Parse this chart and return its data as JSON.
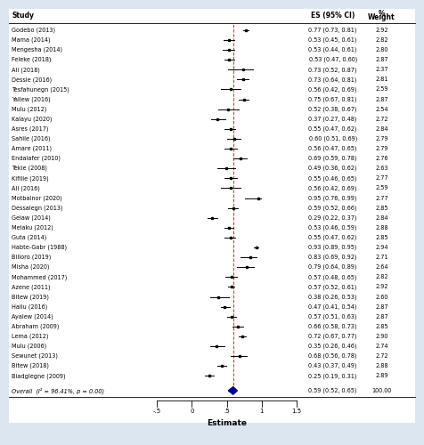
{
  "studies": [
    {
      "name": "Godebo (2013)",
      "es": 0.77,
      "ci_lo": 0.73,
      "ci_hi": 0.81,
      "weight": 2.92
    },
    {
      "name": "Mama (2014)",
      "es": 0.53,
      "ci_lo": 0.45,
      "ci_hi": 0.61,
      "weight": 2.82
    },
    {
      "name": "Mengesha (2014)",
      "es": 0.53,
      "ci_lo": 0.44,
      "ci_hi": 0.61,
      "weight": 2.8
    },
    {
      "name": "Feleke (2018)",
      "es": 0.53,
      "ci_lo": 0.47,
      "ci_hi": 0.6,
      "weight": 2.87
    },
    {
      "name": "Ali (2018)",
      "es": 0.73,
      "ci_lo": 0.52,
      "ci_hi": 0.87,
      "weight": 2.37
    },
    {
      "name": "Dessie (2016)",
      "es": 0.73,
      "ci_lo": 0.64,
      "ci_hi": 0.81,
      "weight": 2.81
    },
    {
      "name": "Tesfahunegn (2015)",
      "es": 0.56,
      "ci_lo": 0.42,
      "ci_hi": 0.69,
      "weight": 2.59
    },
    {
      "name": "Yallew (2016)",
      "es": 0.75,
      "ci_lo": 0.67,
      "ci_hi": 0.81,
      "weight": 2.87
    },
    {
      "name": "Mulu (2012)",
      "es": 0.52,
      "ci_lo": 0.38,
      "ci_hi": 0.67,
      "weight": 2.54
    },
    {
      "name": "Kalayu (2020)",
      "es": 0.37,
      "ci_lo": 0.27,
      "ci_hi": 0.48,
      "weight": 2.72
    },
    {
      "name": "Asres (2017)",
      "es": 0.55,
      "ci_lo": 0.47,
      "ci_hi": 0.62,
      "weight": 2.84
    },
    {
      "name": "Sahile (2016)",
      "es": 0.6,
      "ci_lo": 0.51,
      "ci_hi": 0.69,
      "weight": 2.79
    },
    {
      "name": "Amare (2011)",
      "es": 0.56,
      "ci_lo": 0.47,
      "ci_hi": 0.65,
      "weight": 2.79
    },
    {
      "name": "Endalafer (2010)",
      "es": 0.69,
      "ci_lo": 0.59,
      "ci_hi": 0.78,
      "weight": 2.76
    },
    {
      "name": "Tekie (2008)",
      "es": 0.49,
      "ci_lo": 0.36,
      "ci_hi": 0.62,
      "weight": 2.63
    },
    {
      "name": "Kifilie (2019)",
      "es": 0.55,
      "ci_lo": 0.46,
      "ci_hi": 0.65,
      "weight": 2.77
    },
    {
      "name": "Ali (2016)",
      "es": 0.56,
      "ci_lo": 0.42,
      "ci_hi": 0.69,
      "weight": 2.59
    },
    {
      "name": "Motbainor (2020)",
      "es": 0.95,
      "ci_lo": 0.76,
      "ci_hi": 0.99,
      "weight": 2.77
    },
    {
      "name": "Dessalegn (2013)",
      "es": 0.59,
      "ci_lo": 0.52,
      "ci_hi": 0.66,
      "weight": 2.85
    },
    {
      "name": "Gelaw (2014)",
      "es": 0.29,
      "ci_lo": 0.22,
      "ci_hi": 0.37,
      "weight": 2.84
    },
    {
      "name": "Melaku (2012)",
      "es": 0.53,
      "ci_lo": 0.46,
      "ci_hi": 0.59,
      "weight": 2.88
    },
    {
      "name": "Guta (2014)",
      "es": 0.55,
      "ci_lo": 0.47,
      "ci_hi": 0.62,
      "weight": 2.85
    },
    {
      "name": "Habte-Gabr (1988)",
      "es": 0.93,
      "ci_lo": 0.89,
      "ci_hi": 0.95,
      "weight": 2.94
    },
    {
      "name": "Billoro (2019)",
      "es": 0.83,
      "ci_lo": 0.69,
      "ci_hi": 0.92,
      "weight": 2.71
    },
    {
      "name": "Misha (2020)",
      "es": 0.79,
      "ci_lo": 0.64,
      "ci_hi": 0.89,
      "weight": 2.64
    },
    {
      "name": "Mohammed (2017)",
      "es": 0.57,
      "ci_lo": 0.48,
      "ci_hi": 0.65,
      "weight": 2.82
    },
    {
      "name": "Azene (2011)",
      "es": 0.57,
      "ci_lo": 0.52,
      "ci_hi": 0.61,
      "weight": 2.92
    },
    {
      "name": "Bitew (2019)",
      "es": 0.38,
      "ci_lo": 0.26,
      "ci_hi": 0.53,
      "weight": 2.6
    },
    {
      "name": "Hailu (2016)",
      "es": 0.47,
      "ci_lo": 0.41,
      "ci_hi": 0.54,
      "weight": 2.87
    },
    {
      "name": "Ayalew (2014)",
      "es": 0.57,
      "ci_lo": 0.51,
      "ci_hi": 0.63,
      "weight": 2.87
    },
    {
      "name": "Abraham (2009)",
      "es": 0.66,
      "ci_lo": 0.58,
      "ci_hi": 0.73,
      "weight": 2.85
    },
    {
      "name": "Lema (2012)",
      "es": 0.72,
      "ci_lo": 0.67,
      "ci_hi": 0.77,
      "weight": 2.9
    },
    {
      "name": "Mulu (2006)",
      "es": 0.35,
      "ci_lo": 0.26,
      "ci_hi": 0.46,
      "weight": 2.74
    },
    {
      "name": "Sewunet (2013)",
      "es": 0.68,
      "ci_lo": 0.56,
      "ci_hi": 0.78,
      "weight": 2.72
    },
    {
      "name": "Bitew (2018)",
      "es": 0.43,
      "ci_lo": 0.37,
      "ci_hi": 0.49,
      "weight": 2.88
    },
    {
      "name": "Biadglegne (2009)",
      "es": 0.25,
      "ci_lo": 0.19,
      "ci_hi": 0.31,
      "weight": 2.89
    }
  ],
  "overall": {
    "es": 0.59,
    "ci_lo": 0.52,
    "ci_hi": 0.65,
    "weight": "100.00"
  },
  "xlim": [
    -0.5,
    1.5
  ],
  "xticks": [
    -0.5,
    0,
    0.5,
    1.0,
    1.5
  ],
  "xticklabels": [
    "-.5",
    "0",
    ".5",
    "1",
    "1.5"
  ],
  "xlabel": "Estimate",
  "col_es_label": "ES (95% CI)",
  "col_weight_label": "%\nWeight",
  "ref_line": 0.59,
  "bg_color": "#dce6f1",
  "plot_bg_color": "#ffffff",
  "diamond_color": "#00008B"
}
